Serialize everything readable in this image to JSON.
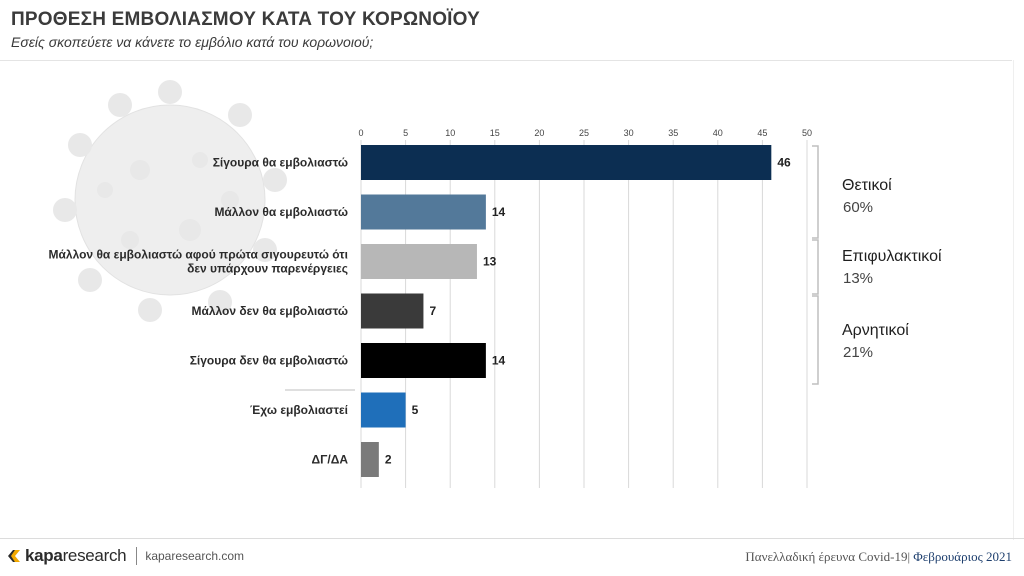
{
  "header": {
    "title": "ΠΡΟΘΕΣΗ ΕΜΒΟΛΙΑΣΜΟΥ ΚΑΤΑ ΤΟΥ ΚΟΡΩΝΟΪΟΥ",
    "subtitle": "Εσείς σκοπεύετε να κάνετε το εμβόλιο κατά του κορωνοιού;"
  },
  "chart_data": {
    "type": "bar",
    "orientation": "horizontal",
    "xlim": [
      0,
      50
    ],
    "ticks": [
      0,
      5,
      10,
      15,
      20,
      25,
      30,
      35,
      40,
      45,
      50
    ],
    "grid": true,
    "categories": [
      [
        "Σίγουρα θα εμβολιαστώ"
      ],
      [
        "Μάλλον θα εμβολιαστώ"
      ],
      [
        "Μάλλον θα εμβολιαστώ αφού πρώτα σιγουρευτώ ότι",
        "δεν υπάρχουν παρενέργειες"
      ],
      [
        "Μάλλον δεν θα εμβολιαστώ"
      ],
      [
        "Σίγουρα δεν θα εμβολιαστώ"
      ],
      [
        "Έχω εμβολιαστεί"
      ],
      [
        "ΔΓ/ΔΑ"
      ]
    ],
    "values": [
      46,
      14,
      13,
      7,
      14,
      5,
      2
    ],
    "colors": [
      "#0c2e52",
      "#53799a",
      "#b7b7b7",
      "#3a3a3a",
      "#000000",
      "#1f6fba",
      "#7a7a7a"
    ],
    "groups": [
      {
        "label": "Θετικοί",
        "percent": "60%",
        "rows": [
          0,
          1
        ]
      },
      {
        "label": "Επιφυλακτικοί",
        "percent": "13%",
        "rows": [
          2
        ]
      },
      {
        "label": "Αρνητικοί",
        "percent": "21%",
        "rows": [
          3,
          4
        ]
      }
    ]
  },
  "footer": {
    "brand_bold": "kapa",
    "brand_light": "research",
    "url": "kaparesearch.com",
    "survey": "Πανελλαδική έρευνα Covid-19|",
    "month": "Φεβρουάριος 2021"
  },
  "colors": {
    "bracket": "#bfbfbf",
    "grid": "#d9d9d9",
    "footer_month": "#1e3f6e"
  }
}
